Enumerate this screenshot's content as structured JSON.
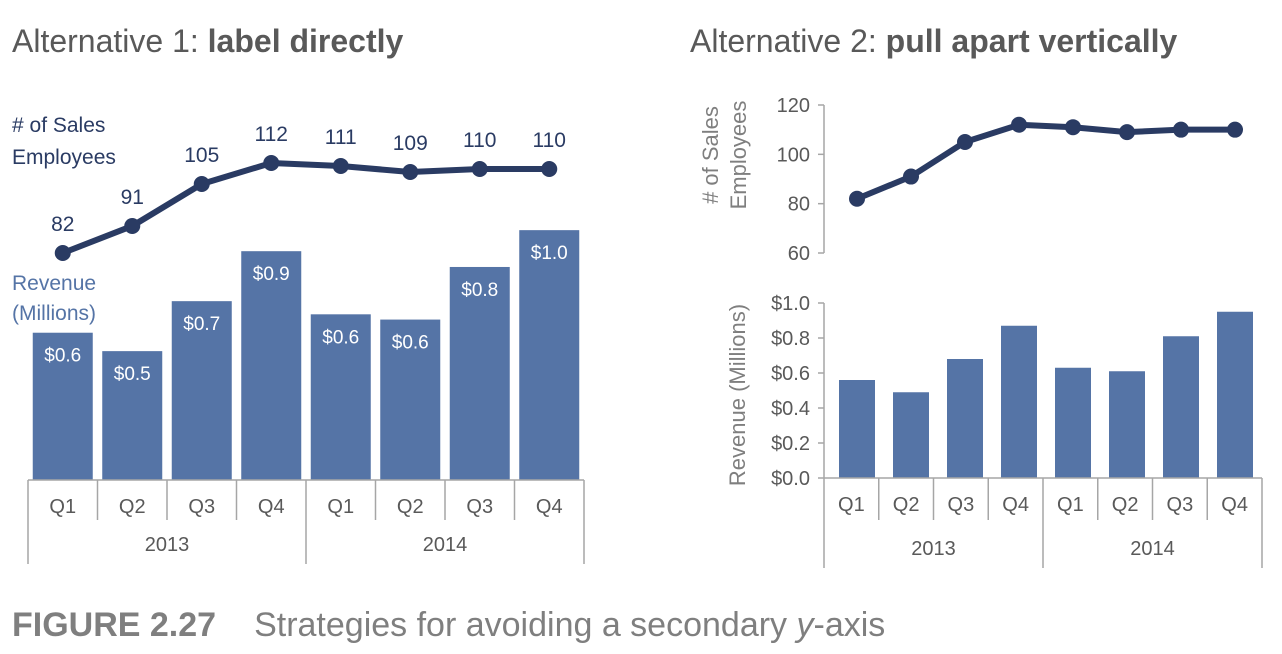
{
  "colors": {
    "bar": "#5574a6",
    "line": "#2a3b63",
    "axis": "#a6a6a6",
    "text": "#595959"
  },
  "panel1": {
    "title_plain": "Alternative 1: ",
    "title_bold": "label directly",
    "employees_label_line1": "# of Sales",
    "employees_label_line2": "Employees",
    "revenue_label_line1": "Revenue",
    "revenue_label_line2": "(Millions)"
  },
  "panel2": {
    "title_plain": "Alternative 2: ",
    "title_bold": "pull apart vertically",
    "employees_axis_line1": "# of Sales",
    "employees_axis_line2": "Employees",
    "revenue_axis_title": "Revenue (Millions)"
  },
  "caption": {
    "figure_number": "FIGURE 2.27",
    "text_before": "Strategies for avoiding a secondary ",
    "text_italic": "y",
    "text_after": "-axis"
  },
  "chart_data": [
    {
      "type": "bar+line",
      "panel": "Alternative 1: label directly",
      "categories": [
        "Q1",
        "Q2",
        "Q3",
        "Q4",
        "Q1",
        "Q2",
        "Q3",
        "Q4"
      ],
      "groups": [
        "2013",
        "2014"
      ],
      "series": [
        {
          "name": "Revenue (Millions)",
          "kind": "bar",
          "values": [
            0.56,
            0.49,
            0.68,
            0.87,
            0.63,
            0.61,
            0.81,
            0.95
          ],
          "labels": [
            "$0.6",
            "$0.5",
            "$0.7",
            "$0.9",
            "$0.6",
            "$0.6",
            "$0.8",
            "$1.0"
          ]
        },
        {
          "name": "# of Sales Employees",
          "kind": "line",
          "values": [
            82,
            91,
            105,
            112,
            111,
            109,
            110,
            110
          ],
          "labels": [
            "82",
            "91",
            "105",
            "112",
            "111",
            "109",
            "110",
            "110"
          ]
        }
      ],
      "grid": false,
      "legend": "none (direct labels)"
    },
    {
      "type": "line",
      "panel": "Alternative 2 (top)",
      "categories": [
        "Q1",
        "Q2",
        "Q3",
        "Q4",
        "Q1",
        "Q2",
        "Q3",
        "Q4"
      ],
      "series": [
        {
          "name": "# of Sales Employees",
          "values": [
            82,
            91,
            105,
            112,
            111,
            109,
            110,
            110
          ]
        }
      ],
      "ylabel": "# of Sales Employees",
      "ylim": [
        60,
        120
      ],
      "yticks": [
        "60",
        "80",
        "100",
        "120"
      ],
      "grid": false
    },
    {
      "type": "bar",
      "panel": "Alternative 2 (bottom)",
      "categories": [
        "Q1",
        "Q2",
        "Q3",
        "Q4",
        "Q1",
        "Q2",
        "Q3",
        "Q4"
      ],
      "groups": [
        "2013",
        "2014"
      ],
      "series": [
        {
          "name": "Revenue (Millions)",
          "values": [
            0.56,
            0.49,
            0.68,
            0.87,
            0.63,
            0.61,
            0.81,
            0.95
          ]
        }
      ],
      "ylabel": "Revenue (Millions)",
      "ylim": [
        0,
        1.0
      ],
      "yticks": [
        "$0.0",
        "$0.2",
        "$0.4",
        "$0.6",
        "$0.8",
        "$1.0"
      ],
      "grid": false
    }
  ]
}
